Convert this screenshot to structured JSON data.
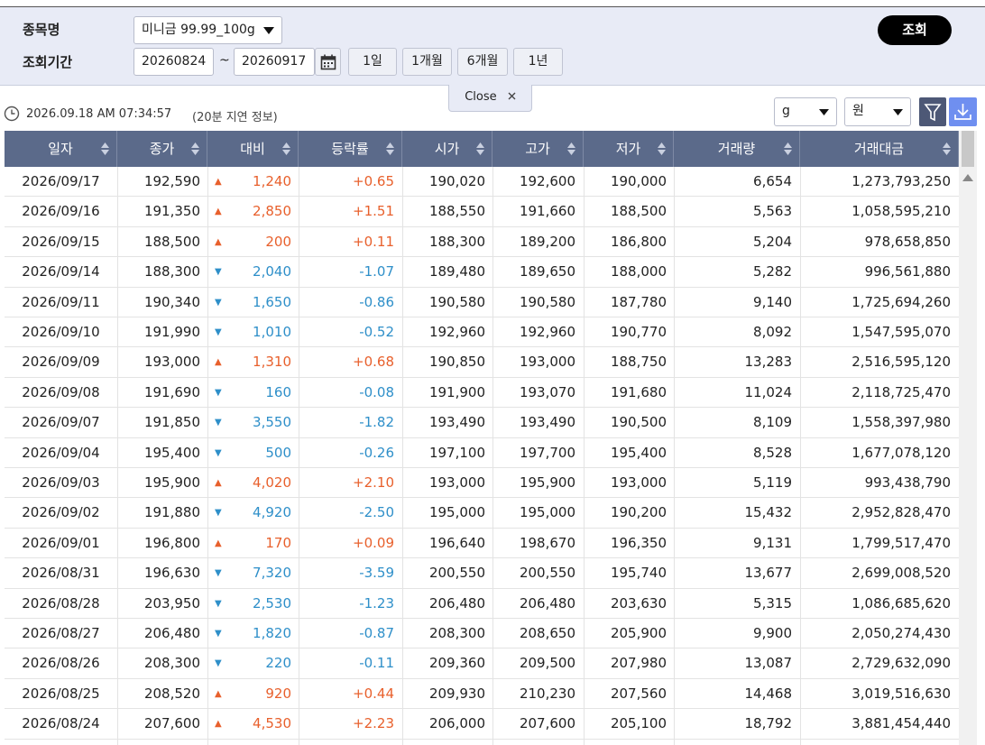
{
  "search": {
    "item_label": "종목명",
    "period_label": "조회기간",
    "item_value": "미니금 99.99_100g",
    "date_from": "20260824",
    "date_sep": "~",
    "date_to": "20260917",
    "range_buttons": [
      "1일",
      "1개월",
      "6개월",
      "1년"
    ],
    "query_button": "조회",
    "close_tab": "Close"
  },
  "status": {
    "timestamp": "2026.09.18 AM 07:34:57",
    "delay_note": "(20분 지연 정보)",
    "unit_select": "g",
    "currency_select": "원"
  },
  "table": {
    "headers": [
      "일자",
      "종가",
      "대비",
      "등락률",
      "시가",
      "고가",
      "저가",
      "거래량",
      "거래대금"
    ],
    "rows": [
      {
        "cells": [
          "2026/09/17",
          "192,590",
          "▲",
          "1,240",
          "+0.65",
          "190,020",
          "192,600",
          "190,000",
          "6,654",
          "1,273,793,250"
        ],
        "color": "#e8602c"
      },
      {
        "cells": [
          "2026/09/16",
          "191,350",
          "▲",
          "2,850",
          "+1.51",
          "188,550",
          "191,660",
          "188,500",
          "5,563",
          "1,058,595,210"
        ],
        "color": "#e8602c"
      },
      {
        "cells": [
          "2026/09/15",
          "188,500",
          "▲",
          "200",
          "+0.11",
          "188,300",
          "189,200",
          "186,800",
          "5,204",
          "978,658,850"
        ],
        "color": "#e8602c"
      },
      {
        "cells": [
          "2026/09/14",
          "188,300",
          "▼",
          "2,040",
          "-1.07",
          "189,480",
          "189,650",
          "188,000",
          "5,282",
          "996,561,880"
        ],
        "color": "#2e8fc9"
      },
      {
        "cells": [
          "2026/09/11",
          "190,340",
          "▼",
          "1,650",
          "-0.86",
          "190,580",
          "190,580",
          "187,780",
          "9,140",
          "1,725,694,260"
        ],
        "color": "#2e8fc9"
      },
      {
        "cells": [
          "2026/09/10",
          "191,990",
          "▼",
          "1,010",
          "-0.52",
          "192,960",
          "192,960",
          "190,770",
          "8,092",
          "1,547,595,070"
        ],
        "color": "#2e8fc9"
      },
      {
        "cells": [
          "2026/09/09",
          "193,000",
          "▲",
          "1,310",
          "+0.68",
          "190,850",
          "193,000",
          "188,750",
          "13,283",
          "2,516,595,120"
        ],
        "color": "#e8602c"
      },
      {
        "cells": [
          "2026/09/08",
          "191,690",
          "▼",
          "160",
          "-0.08",
          "191,900",
          "193,070",
          "191,680",
          "11,024",
          "2,118,725,470"
        ],
        "color": "#2e8fc9"
      },
      {
        "cells": [
          "2026/09/07",
          "191,850",
          "▼",
          "3,550",
          "-1.82",
          "193,490",
          "193,490",
          "190,500",
          "8,109",
          "1,558,397,980"
        ],
        "color": "#2e8fc9"
      },
      {
        "cells": [
          "2026/09/04",
          "195,400",
          "▼",
          "500",
          "-0.26",
          "197,100",
          "197,700",
          "195,400",
          "8,528",
          "1,677,078,120"
        ],
        "color": "#2e8fc9"
      },
      {
        "cells": [
          "2026/09/03",
          "195,900",
          "▲",
          "4,020",
          "+2.10",
          "193,000",
          "195,900",
          "193,000",
          "5,119",
          "993,438,790"
        ],
        "color": "#e8602c"
      },
      {
        "cells": [
          "2026/09/02",
          "191,880",
          "▼",
          "4,920",
          "-2.50",
          "195,000",
          "195,000",
          "190,200",
          "15,432",
          "2,952,828,470"
        ],
        "color": "#2e8fc9"
      },
      {
        "cells": [
          "2026/09/01",
          "196,800",
          "▲",
          "170",
          "+0.09",
          "196,640",
          "198,670",
          "196,350",
          "9,131",
          "1,799,517,470"
        ],
        "color": "#e8602c"
      },
      {
        "cells": [
          "2026/08/31",
          "196,630",
          "▼",
          "7,320",
          "-3.59",
          "200,550",
          "200,550",
          "195,740",
          "13,677",
          "2,699,008,520"
        ],
        "color": "#2e8fc9"
      },
      {
        "cells": [
          "2026/08/28",
          "203,950",
          "▼",
          "2,530",
          "-1.23",
          "206,480",
          "206,480",
          "203,630",
          "5,315",
          "1,086,685,620"
        ],
        "color": "#2e8fc9"
      },
      {
        "cells": [
          "2026/08/27",
          "206,480",
          "▼",
          "1,820",
          "-0.87",
          "208,300",
          "208,650",
          "205,900",
          "9,900",
          "2,050,274,430"
        ],
        "color": "#2e8fc9"
      },
      {
        "cells": [
          "2026/08/26",
          "208,300",
          "▼",
          "220",
          "-0.11",
          "209,360",
          "209,500",
          "207,980",
          "13,087",
          "2,729,632,090"
        ],
        "color": "#2e8fc9"
      },
      {
        "cells": [
          "2026/08/25",
          "208,520",
          "▲",
          "920",
          "+0.44",
          "209,930",
          "210,230",
          "207,560",
          "14,468",
          "3,019,516,630"
        ],
        "color": "#e8602c"
      },
      {
        "cells": [
          "2026/08/24",
          "207,600",
          "▲",
          "4,530",
          "+2.23",
          "206,000",
          "207,600",
          "205,100",
          "18,792",
          "3,881,454,440"
        ],
        "color": "#e8602c"
      }
    ]
  }
}
